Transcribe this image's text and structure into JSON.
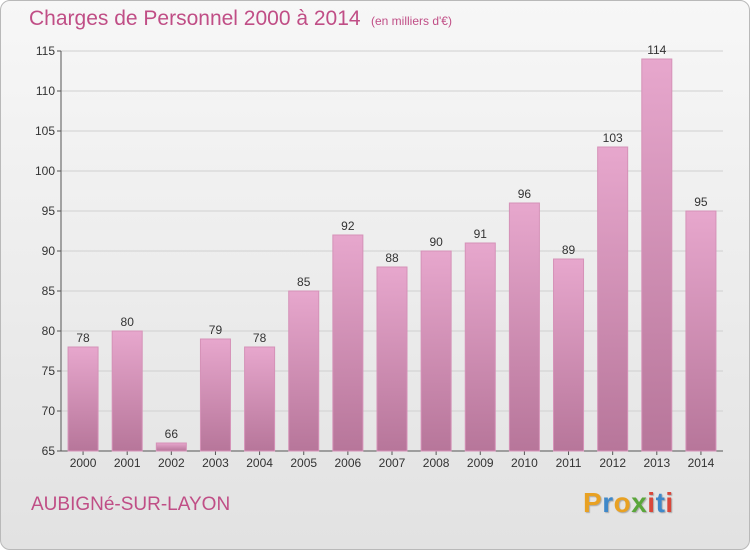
{
  "header": {
    "title": "Charges de Personnel 2000 à 2014",
    "subtitle": "(en milliers d'€)"
  },
  "footer": {
    "place": "AUBIGNé-SUR-LAYON",
    "brand": "Proxiti",
    "brand_colors": [
      "#e8a123",
      "#3f88c9",
      "#e8a123",
      "#5aa63a",
      "#d9473a",
      "#3f88c9",
      "#d9473a"
    ]
  },
  "chart_data": {
    "type": "bar",
    "title": "Charges de Personnel 2000 à 2014",
    "subtitle": "(en milliers d'€)",
    "categories": [
      "2000",
      "2001",
      "2002",
      "2003",
      "2004",
      "2005",
      "2006",
      "2007",
      "2008",
      "2009",
      "2010",
      "2011",
      "2012",
      "2013",
      "2014"
    ],
    "values": [
      78,
      80,
      66,
      79,
      78,
      85,
      92,
      88,
      90,
      91,
      96,
      89,
      103,
      114,
      95
    ],
    "ylim": [
      65,
      115
    ],
    "yticks": [
      65,
      70,
      75,
      80,
      85,
      90,
      95,
      100,
      105,
      110,
      115
    ],
    "grid": true,
    "bar_color_top": "#e7a7cd",
    "bar_color_bottom": "#b7769a",
    "text_color": "#c04e86"
  }
}
